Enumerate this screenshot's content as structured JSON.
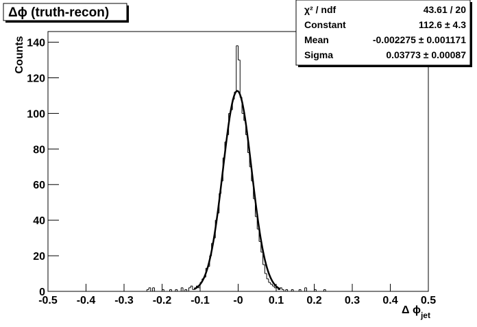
{
  "chart_data": {
    "type": "histogram",
    "title": "Δϕ (truth-recon)",
    "x_label": "Δ ϕ",
    "x_label_sub": "jet",
    "y_label": "Counts",
    "bins": [
      -0.25,
      -0.245,
      -0.24,
      -0.235,
      -0.23,
      -0.225,
      -0.22,
      -0.215,
      -0.21,
      -0.205,
      -0.2,
      -0.195,
      -0.19,
      -0.185,
      -0.18,
      -0.175,
      -0.17,
      -0.165,
      -0.16,
      -0.155,
      -0.15,
      -0.145,
      -0.14,
      -0.135,
      -0.13,
      -0.125,
      -0.12,
      -0.115,
      -0.11,
      -0.105,
      -0.1,
      -0.095,
      -0.09,
      -0.085,
      -0.08,
      -0.075,
      -0.07,
      -0.065,
      -0.06,
      -0.055,
      -0.05,
      -0.045,
      -0.04,
      -0.035,
      -0.03,
      -0.025,
      -0.02,
      -0.015,
      -0.01,
      -0.005,
      0,
      0.005,
      0.01,
      0.015,
      0.02,
      0.025,
      0.03,
      0.035,
      0.04,
      0.045,
      0.05,
      0.055,
      0.06,
      0.065,
      0.07,
      0.075,
      0.08,
      0.085,
      0.09,
      0.095,
      0.1,
      0.105,
      0.11,
      0.115,
      0.12,
      0.125,
      0.13,
      0.135,
      0.14,
      0.145,
      0.15,
      0.155,
      0.16,
      0.165,
      0.17,
      0.175,
      0.18,
      0.185,
      0.19,
      0.195,
      0.2,
      0.205,
      0.21,
      0.215,
      0.22,
      0.225,
      0.23,
      0.235,
      0.24,
      0.245,
      0.25
    ],
    "values": [
      0,
      0,
      1,
      2,
      0,
      2,
      0,
      0,
      0,
      0,
      1,
      0,
      0,
      0,
      1,
      0,
      0,
      1,
      0,
      0,
      2,
      0,
      1,
      0,
      2,
      3,
      1,
      2,
      3,
      2,
      5,
      7,
      8,
      13,
      14,
      20,
      27,
      30,
      40,
      44,
      55,
      62,
      75,
      84,
      88,
      100,
      102,
      108,
      112,
      138,
      130,
      109,
      100,
      96,
      88,
      78,
      70,
      62,
      52,
      42,
      35,
      28,
      22,
      15,
      10,
      7,
      5,
      4,
      3,
      2,
      2,
      1,
      2,
      1,
      0,
      1,
      0,
      0,
      1,
      0,
      0,
      0,
      1,
      0,
      0,
      2,
      0,
      0,
      0,
      0,
      1,
      0,
      0,
      0,
      0,
      1,
      0,
      0,
      0,
      0
    ],
    "color": "#000000",
    "fit": {
      "constant": 112.6,
      "mean": -0.002275,
      "sigma": 0.03773
    },
    "stats": [
      {
        "label": "χ² / ndf",
        "value_label": "43.61 / 20"
      },
      {
        "label": "Constant",
        "value_label": "112.6 ± 4.3"
      },
      {
        "label": "Mean",
        "value_label": "-0.002275 ± 0.001171"
      },
      {
        "label": "Sigma",
        "value_label": "0.03773 ± 0.00087"
      }
    ],
    "xlim": [
      -0.5,
      0.5
    ],
    "xticks": [
      -0.5,
      -0.4,
      -0.3,
      -0.2,
      -0.1,
      {
        "value": 0,
        "label": "-0"
      },
      0.1,
      0.2,
      0.3,
      0.4,
      0.5
    ],
    "ylim": [
      0,
      146
    ],
    "yticks": [
      0,
      20,
      40,
      60,
      80,
      100,
      120,
      140
    ]
  }
}
